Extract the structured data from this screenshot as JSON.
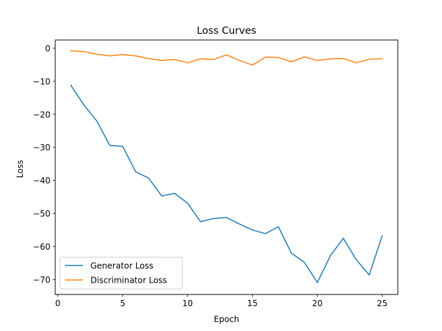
{
  "chart_data": {
    "type": "line",
    "title": "Loss Curves",
    "xlabel": "Epoch",
    "ylabel": "Loss",
    "xlim": [
      -0.2,
      26.2
    ],
    "ylim": [
      -74.5,
      2.5
    ],
    "xticks": [
      0,
      5,
      10,
      15,
      20,
      25
    ],
    "yticks": [
      0,
      -10,
      -20,
      -30,
      -40,
      -50,
      -60,
      -70
    ],
    "xtick_labels": [
      "0",
      "5",
      "10",
      "15",
      "20",
      "25"
    ],
    "ytick_labels": [
      "0",
      "−10",
      "−20",
      "−30",
      "−40",
      "−50",
      "−60",
      "−70"
    ],
    "grid": false,
    "legend_position": "lower-left",
    "x": [
      1,
      2,
      3,
      4,
      5,
      6,
      7,
      8,
      9,
      10,
      11,
      12,
      13,
      14,
      15,
      16,
      17,
      18,
      19,
      20,
      21,
      22,
      23,
      24,
      25
    ],
    "series": [
      {
        "name": "Generator Loss",
        "color": "#1f77b4",
        "values": [
          -11.2,
          -17.1,
          -22.0,
          -29.4,
          -29.7,
          -37.4,
          -39.3,
          -44.7,
          -43.9,
          -46.9,
          -52.5,
          -51.5,
          -51.2,
          -53.2,
          -55.0,
          -56.1,
          -54.0,
          -62.0,
          -64.8,
          -70.9,
          -62.8,
          -57.5,
          -64.0,
          -68.6,
          -56.7
        ]
      },
      {
        "name": "Discriminator Loss",
        "color": "#ff7f0e",
        "values": [
          -0.8,
          -1.0,
          -1.8,
          -2.3,
          -1.9,
          -2.3,
          -3.1,
          -3.7,
          -3.4,
          -4.4,
          -3.2,
          -3.4,
          -2.0,
          -3.7,
          -5.1,
          -2.7,
          -2.8,
          -4.1,
          -2.6,
          -3.7,
          -3.2,
          -3.1,
          -4.4,
          -3.3,
          -3.2
        ]
      }
    ]
  }
}
